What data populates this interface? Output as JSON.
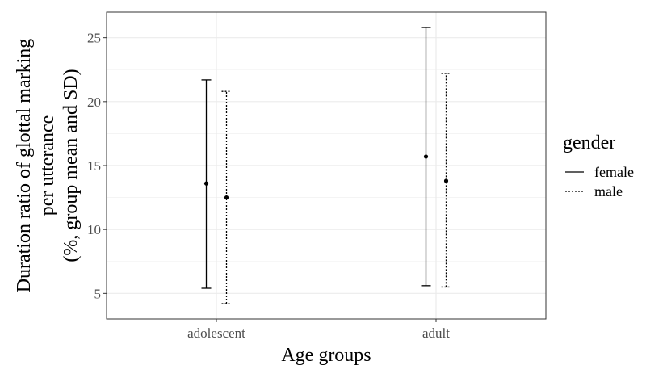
{
  "chart_data": {
    "type": "errorbar",
    "xlabel": "Age groups",
    "ylabel_lines": [
      "Duration ratio of glottal marking",
      "per utterance",
      "(%, group mean and SD)"
    ],
    "categories": [
      "adolescent",
      "adult"
    ],
    "ylim": [
      3,
      27
    ],
    "yticks": [
      5,
      10,
      15,
      20,
      25
    ],
    "ytick_labels": [
      "5",
      "10",
      "15",
      "20",
      "25"
    ],
    "grid": true,
    "legend": {
      "title": "gender",
      "position": "right",
      "entries": [
        {
          "label": "female",
          "linestyle": "solid"
        },
        {
          "label": "male",
          "linestyle": "dotted"
        }
      ]
    },
    "series": [
      {
        "name": "female",
        "linestyle": "solid",
        "points": [
          {
            "category": "adolescent",
            "mean": 13.6,
            "lower": 5.4,
            "upper": 21.7
          },
          {
            "category": "adult",
            "mean": 15.7,
            "lower": 5.6,
            "upper": 25.8
          }
        ]
      },
      {
        "name": "male",
        "linestyle": "dotted",
        "points": [
          {
            "category": "adolescent",
            "mean": 12.5,
            "lower": 4.2,
            "upper": 20.8
          },
          {
            "category": "adult",
            "mean": 13.8,
            "lower": 5.5,
            "upper": 22.2
          }
        ]
      }
    ]
  }
}
